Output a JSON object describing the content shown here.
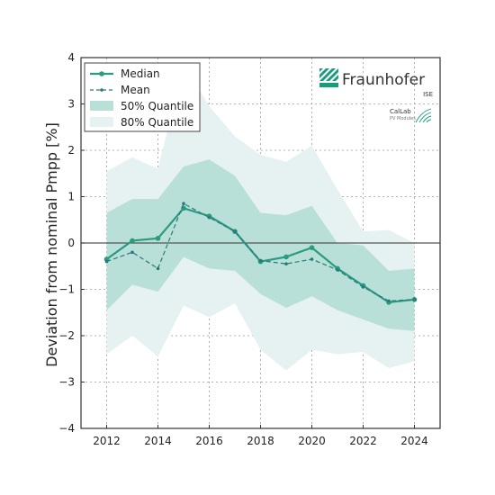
{
  "chart_data": {
    "type": "line",
    "title": "",
    "xlabel": "",
    "ylabel": "Deviation from nominal Pmpp [%]",
    "xlim": [
      2011,
      2025
    ],
    "ylim": [
      -4,
      4
    ],
    "xticks": [
      2012,
      2014,
      2016,
      2018,
      2020,
      2022,
      2024
    ],
    "yticks": [
      -4,
      -3,
      -2,
      -1,
      0,
      1,
      2,
      3,
      4
    ],
    "grid": true,
    "legend_position": "top-left",
    "x": [
      2012,
      2013,
      2014,
      2015,
      2016,
      2017,
      2018,
      2019,
      2020,
      2021,
      2022,
      2023,
      2024
    ],
    "series": [
      {
        "name": "Median",
        "style": "solid-marker",
        "values": [
          -0.35,
          0.05,
          0.1,
          0.75,
          0.58,
          0.25,
          -0.4,
          -0.3,
          -0.1,
          -0.55,
          -0.92,
          -1.28,
          -1.22
        ]
      },
      {
        "name": "Mean",
        "style": "dashed-marker",
        "values": [
          -0.4,
          -0.2,
          -0.55,
          0.85,
          0.55,
          0.25,
          -0.38,
          -0.45,
          -0.35,
          -0.58,
          -0.95,
          -1.25,
          -1.22
        ]
      }
    ],
    "bands": [
      {
        "name": "80% Quantile",
        "lower": [
          -2.4,
          -2.0,
          -2.45,
          -1.35,
          -1.6,
          -1.3,
          -2.3,
          -2.75,
          -2.3,
          -2.4,
          -2.35,
          -2.7,
          -2.55
        ],
        "upper": [
          1.55,
          1.85,
          1.6,
          3.85,
          2.95,
          2.3,
          1.9,
          1.75,
          2.1,
          1.15,
          0.25,
          0.28,
          0.0
        ]
      },
      {
        "name": "50% Quantile",
        "lower": [
          -1.45,
          -0.9,
          -1.05,
          -0.3,
          -0.55,
          -0.6,
          -1.1,
          -1.4,
          -1.15,
          -1.45,
          -1.65,
          -1.85,
          -1.9
        ],
        "upper": [
          0.65,
          0.95,
          0.95,
          1.65,
          1.8,
          1.45,
          0.65,
          0.6,
          0.8,
          0.0,
          -0.05,
          -0.6,
          -0.55
        ]
      }
    ],
    "colors": {
      "median": "#2a9a80",
      "mean": "#2a7a7a",
      "band50": "#b9e0d8",
      "band80": "#e6f1f2",
      "zero_line": "#555555",
      "grid": "#9a9a9a"
    }
  },
  "logo": {
    "name": "Fraunhofer",
    "sub": "ISE",
    "lab": "CalLab",
    "lab_sub": "PV Modules",
    "color": "#179c7d"
  }
}
